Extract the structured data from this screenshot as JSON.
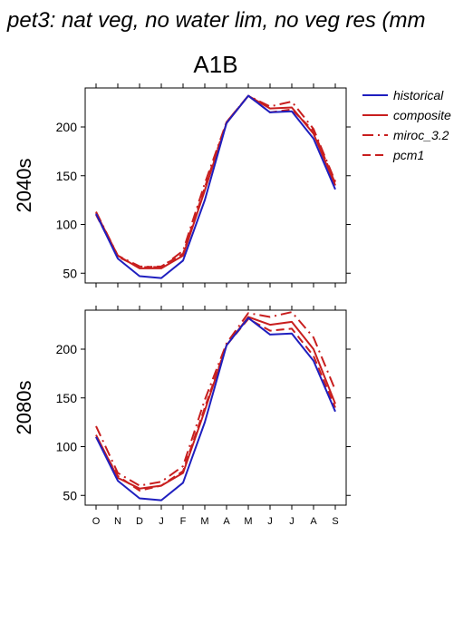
{
  "title": "pet3: nat veg, no water lim, no veg res (mm",
  "panel_title": "A1B",
  "legend": [
    {
      "label": "historical",
      "color": "#1f1fbf",
      "dash": "solid"
    },
    {
      "label": "composite",
      "color": "#c81e1e",
      "dash": "solid"
    },
    {
      "label": "miroc_3.2",
      "color": "#c81e1e",
      "dash": "dashdot"
    },
    {
      "label": "pcm1",
      "color": "#c81e1e",
      "dash": "dashed"
    }
  ],
  "chart_data": [
    {
      "type": "line",
      "row_label": "2040s",
      "categories": [
        "O",
        "N",
        "D",
        "J",
        "F",
        "M",
        "A",
        "M",
        "J",
        "J",
        "A",
        "S"
      ],
      "ylim": [
        40,
        240
      ],
      "yticks": [
        50,
        100,
        150,
        200
      ],
      "series": [
        {
          "name": "historical",
          "values": [
            111,
            65,
            47,
            45,
            63,
            125,
            204,
            232,
            215,
            216,
            188,
            136
          ]
        },
        {
          "name": "composite",
          "values": [
            112,
            68,
            55,
            55,
            68,
            135,
            204,
            232,
            219,
            220,
            193,
            140
          ]
        },
        {
          "name": "miroc_3.2",
          "values": [
            113,
            68,
            57,
            56,
            73,
            142,
            205,
            232,
            221,
            226,
            198,
            144
          ]
        },
        {
          "name": "pcm1",
          "values": [
            110,
            67,
            56,
            57,
            70,
            138,
            205,
            232,
            215,
            218,
            196,
            142
          ]
        }
      ]
    },
    {
      "type": "line",
      "row_label": "2080s",
      "categories": [
        "O",
        "N",
        "D",
        "J",
        "F",
        "M",
        "A",
        "M",
        "J",
        "J",
        "A",
        "S"
      ],
      "ylim": [
        40,
        240
      ],
      "yticks": [
        50,
        100,
        150,
        200
      ],
      "series": [
        {
          "name": "historical",
          "values": [
            110,
            65,
            47,
            45,
            63,
            125,
            204,
            232,
            215,
            216,
            188,
            136
          ]
        },
        {
          "name": "composite",
          "values": [
            112,
            68,
            57,
            60,
            73,
            137,
            204,
            233,
            225,
            228,
            200,
            144
          ]
        },
        {
          "name": "miroc_3.2",
          "values": [
            121,
            73,
            60,
            64,
            80,
            148,
            206,
            237,
            233,
            238,
            212,
            158
          ]
        },
        {
          "name": "pcm1",
          "values": [
            110,
            70,
            55,
            60,
            75,
            140,
            204,
            231,
            219,
            221,
            193,
            140
          ]
        }
      ]
    }
  ]
}
